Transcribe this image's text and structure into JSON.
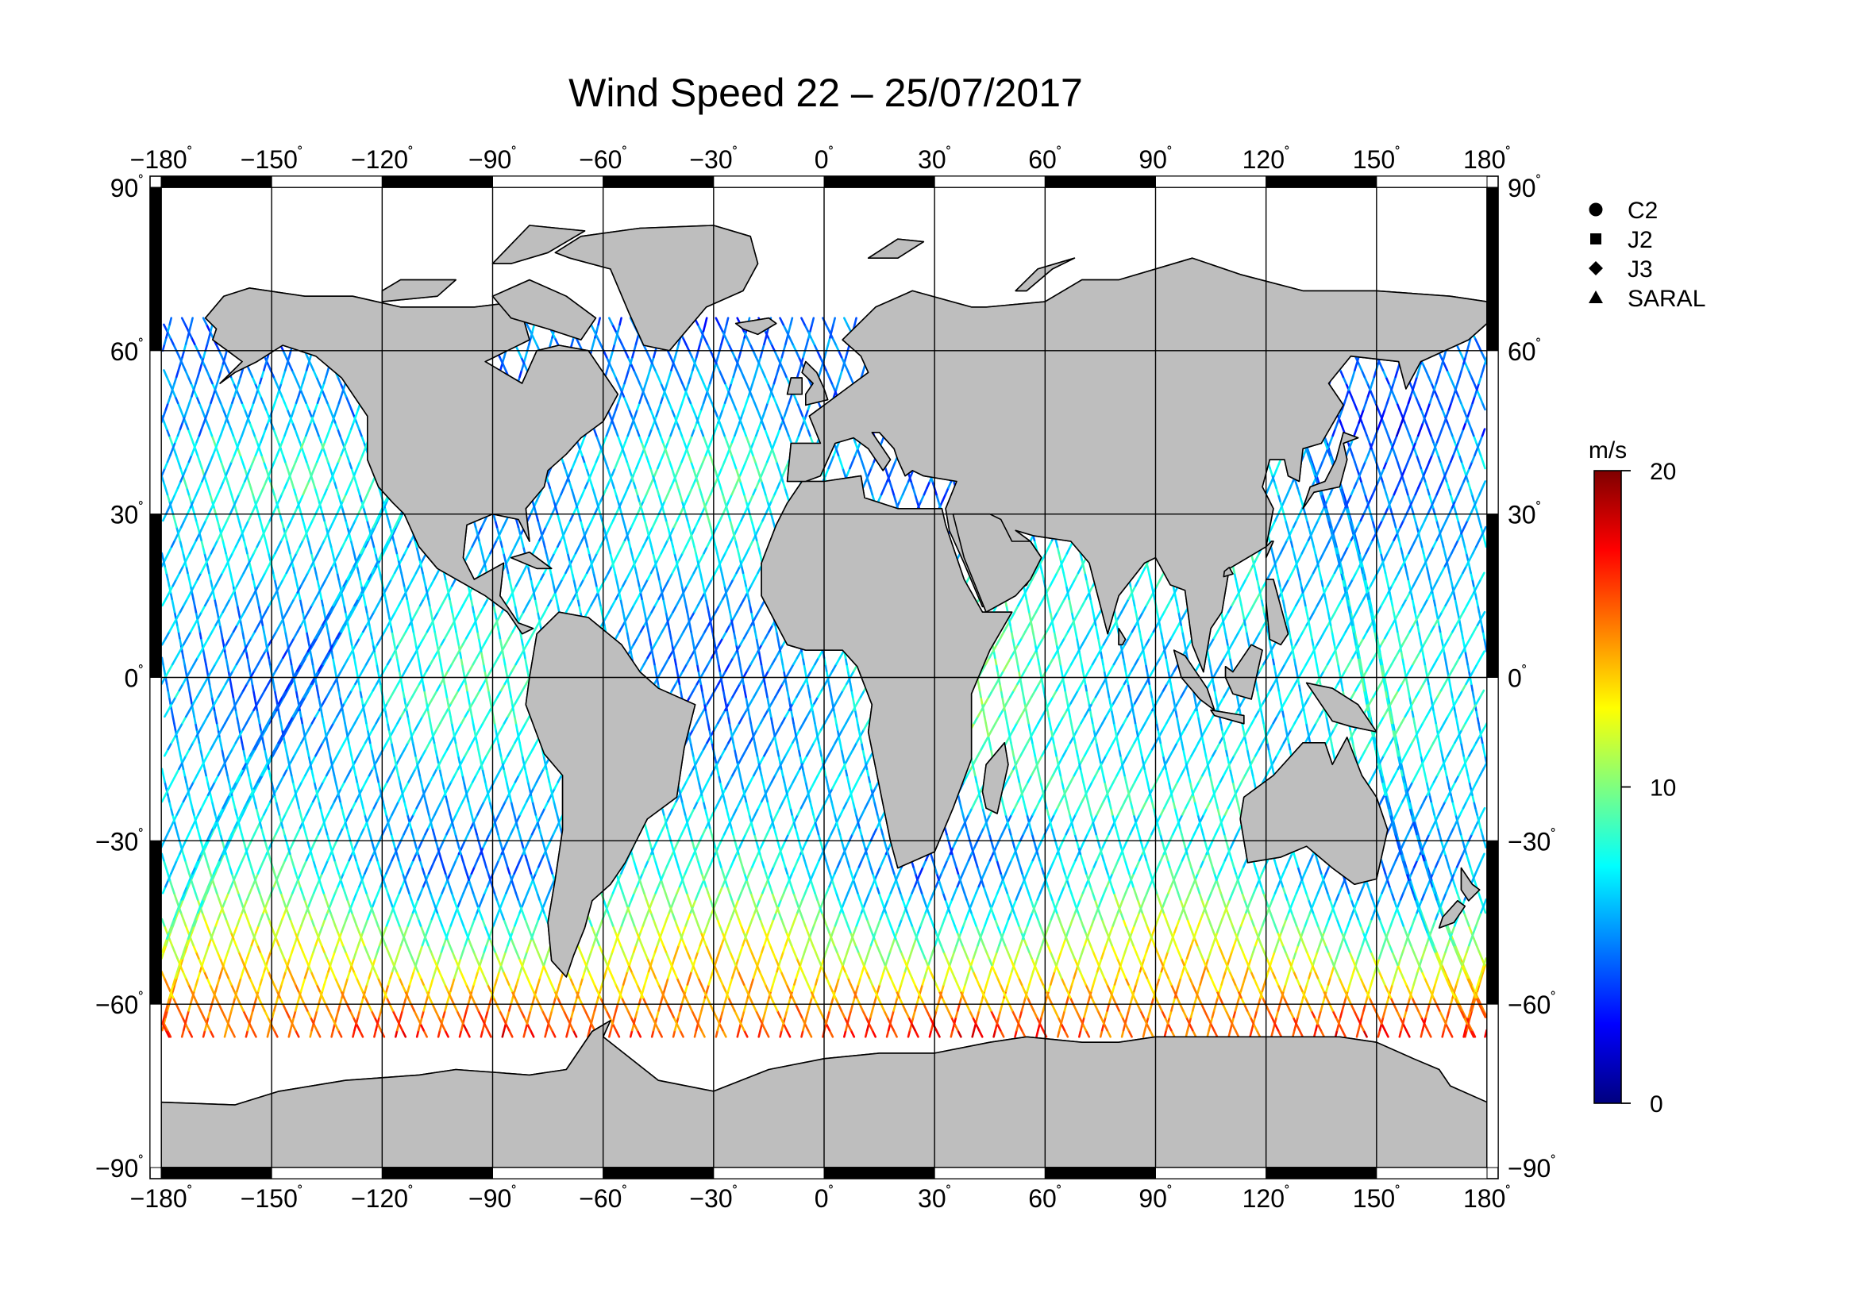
{
  "title": "Wind Speed 22 – 25/07/2017",
  "map": {
    "projection": "equirectangular",
    "lon_range": [
      -180,
      180
    ],
    "lat_range": [
      -90,
      90
    ],
    "graticule_step": 30,
    "land_color": "#bebebe",
    "ocean_color": "#ffffff",
    "frame_color": "#000000"
  },
  "axes": {
    "lon_ticks": [
      "−180",
      "−150",
      "−120",
      "−90",
      "−60",
      "−30",
      "0",
      "30",
      "60",
      "90",
      "120",
      "150",
      "180"
    ],
    "lat_ticks": [
      "90",
      "60",
      "30",
      "0",
      "−30",
      "−60",
      "−90"
    ],
    "degree_symbol": "˚"
  },
  "legend": {
    "items": [
      {
        "symbol": "circle",
        "label": "C2"
      },
      {
        "symbol": "square",
        "label": "J2"
      },
      {
        "symbol": "diamond",
        "label": "J3"
      },
      {
        "symbol": "triangle",
        "label": "SARAL"
      }
    ]
  },
  "colorbar": {
    "unit": "m/s",
    "min": 0,
    "max": 20,
    "tick_labels": [
      "20",
      "10",
      "0"
    ],
    "stops": [
      "#00007f",
      "#0000ff",
      "#007fff",
      "#00ffff",
      "#7fff7f",
      "#ffff00",
      "#ff7f00",
      "#ff0000",
      "#7f0000"
    ]
  }
}
